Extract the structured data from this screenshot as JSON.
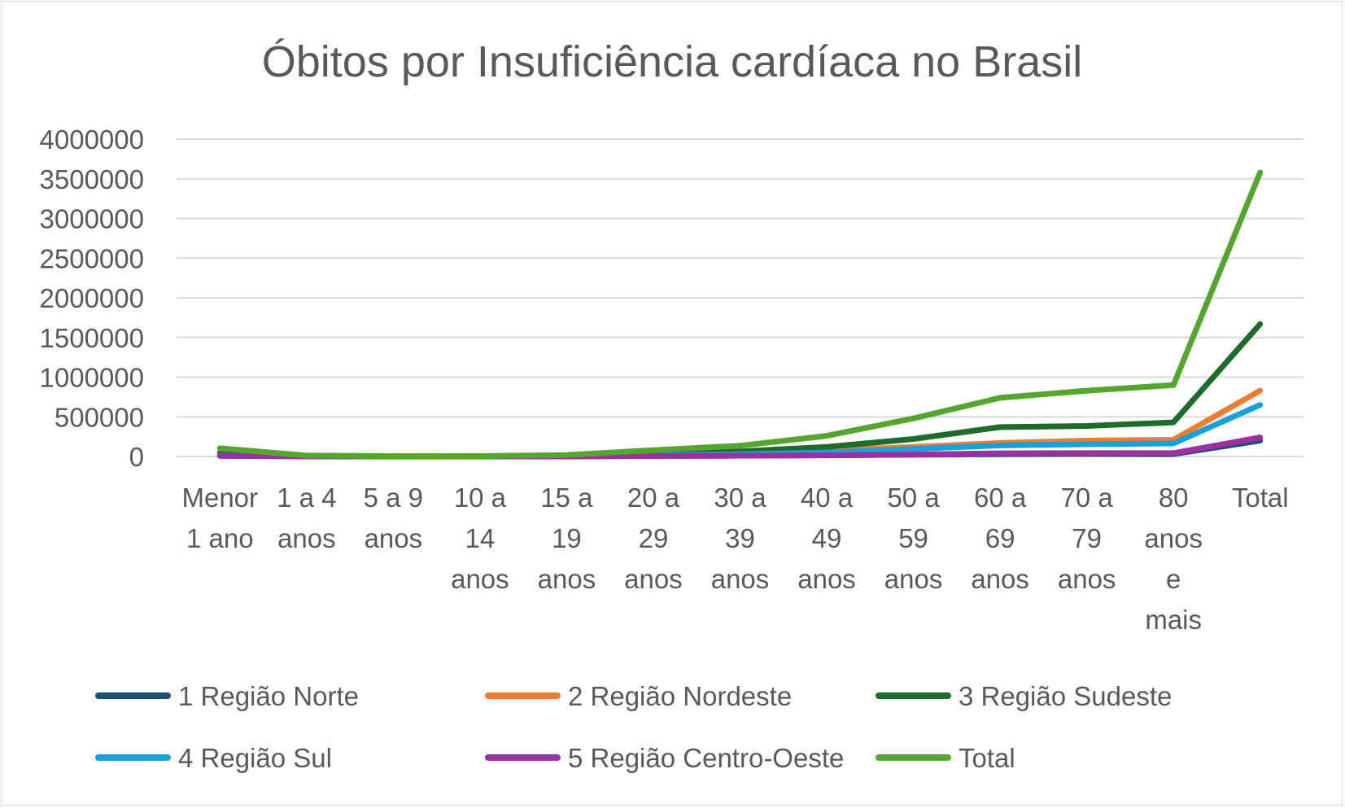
{
  "chart_data": {
    "type": "line",
    "title": "Óbitos por  Insuficiência cardíaca no Brasil",
    "xlabel": "",
    "ylabel": "",
    "ylim": [
      0,
      4000000
    ],
    "yticks": [
      "0",
      "500000",
      "1000000",
      "1500000",
      "2000000",
      "2500000",
      "3000000",
      "3500000",
      "4000000"
    ],
    "grid": true,
    "legend_position": "bottom",
    "categories": [
      [
        "Menor",
        "1 ano"
      ],
      [
        "1 a 4",
        "anos"
      ],
      [
        "5 a 9",
        "anos"
      ],
      [
        "10 a",
        "14",
        "anos"
      ],
      [
        "15 a",
        "19",
        "anos"
      ],
      [
        "20 a",
        "29",
        "anos"
      ],
      [
        "30 a",
        "39",
        "anos"
      ],
      [
        "40 a",
        "49",
        "anos"
      ],
      [
        "50 a",
        "59",
        "anos"
      ],
      [
        "60 a",
        "69",
        "anos"
      ],
      [
        "70 a",
        "79",
        "anos"
      ],
      [
        "80",
        "anos",
        "e",
        "mais"
      ],
      [
        "Total"
      ]
    ],
    "series": [
      {
        "name": "1 Região Norte",
        "color": "#1f4e79",
        "values": [
          8000,
          800,
          300,
          400,
          1500,
          6000,
          10000,
          15000,
          22000,
          30000,
          32000,
          30000,
          200000
        ]
      },
      {
        "name": "2 Região Nordeste",
        "color": "#ed7d31",
        "values": [
          20000,
          3000,
          1000,
          1500,
          4000,
          20000,
          40000,
          80000,
          120000,
          170000,
          200000,
          210000,
          830000
        ]
      },
      {
        "name": "3 Região Sudeste",
        "color": "#1e6b2b",
        "values": [
          45000,
          5000,
          2000,
          2500,
          7000,
          35000,
          65000,
          120000,
          220000,
          370000,
          385000,
          430000,
          1670000
        ]
      },
      {
        "name": "4 Região Sul",
        "color": "#1aa0d8",
        "values": [
          12000,
          1500,
          500,
          700,
          2500,
          14000,
          28000,
          50000,
          95000,
          140000,
          155000,
          165000,
          650000
        ]
      },
      {
        "name": "5 Região Centro-Oeste",
        "color": "#9b30a0",
        "values": [
          7000,
          800,
          300,
          400,
          1500,
          6000,
          10000,
          14000,
          25000,
          40000,
          42000,
          42000,
          240000
        ]
      },
      {
        "name": "Total",
        "color": "#55a630",
        "values": [
          105000,
          11000,
          4500,
          5500,
          17000,
          80000,
          135000,
          260000,
          480000,
          740000,
          830000,
          900000,
          3580000
        ]
      }
    ]
  }
}
